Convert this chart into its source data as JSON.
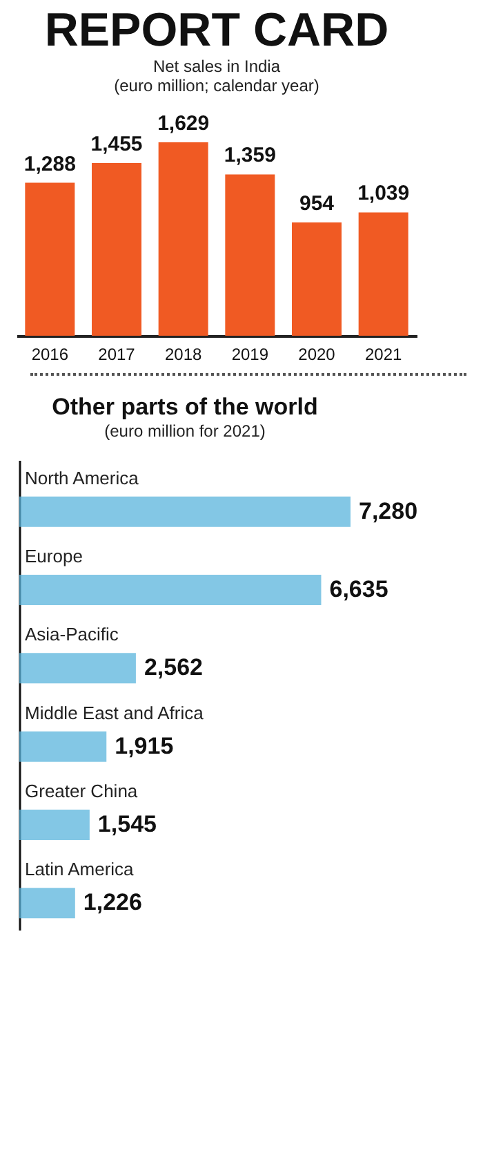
{
  "chart_data": [
    {
      "type": "bar",
      "title": "REPORT CARD",
      "subtitle": "Net sales in India",
      "annotations": [
        "(euro million; calendar year)"
      ],
      "categories": [
        "2016",
        "2017",
        "2018",
        "2019",
        "2020",
        "2021"
      ],
      "values": [
        1288,
        1455,
        1629,
        1359,
        954,
        1039
      ],
      "value_labels": [
        "1,288",
        "1,455",
        "1,629",
        "1,359",
        "954",
        "1,039"
      ],
      "color": "#f05a23",
      "tick_labels": "x"
    },
    {
      "type": "bar",
      "orientation": "horizontal",
      "title": "Other parts of the world",
      "subtitle": "(euro million for 2021)",
      "categories": [
        "North America",
        "Europe",
        "Asia-Pacific",
        "Middle East and Africa",
        "Greater China",
        "Latin America"
      ],
      "values": [
        7280,
        6635,
        2562,
        1915,
        1545,
        1226
      ],
      "value_labels": [
        "7,280",
        "6,635",
        "2,562",
        "1,915",
        "1,545",
        "1,226"
      ],
      "color": "#5ab4dc",
      "tick_labels": false
    }
  ]
}
